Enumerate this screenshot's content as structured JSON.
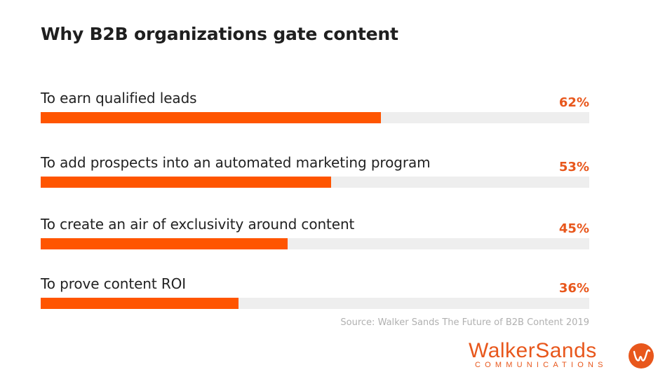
{
  "chart_data": {
    "type": "bar",
    "orientation": "horizontal",
    "title": "Why B2B organizations gate content",
    "categories": [
      "To earn qualified leads",
      "To add prospects into an automated marketing program",
      "To create an air of exclusivity around content",
      "To prove content ROI"
    ],
    "values": [
      62,
      53,
      45,
      36
    ],
    "value_labels": [
      "62%",
      "53%",
      "45%",
      "36%"
    ],
    "xlim": [
      0,
      100
    ],
    "grid": false,
    "source": "Source: Walker Sands The Future of B2B Content 2019"
  },
  "colors": {
    "bar_fill": "#ff5500",
    "bar_track": "#eeeeee",
    "value_text": "#e8571c",
    "brand": "#e8571c"
  },
  "brand": {
    "wordmark": "WalkerSands",
    "subline": "COMMUNICATIONS",
    "mark_icon": "walker-sands-logo-icon"
  }
}
